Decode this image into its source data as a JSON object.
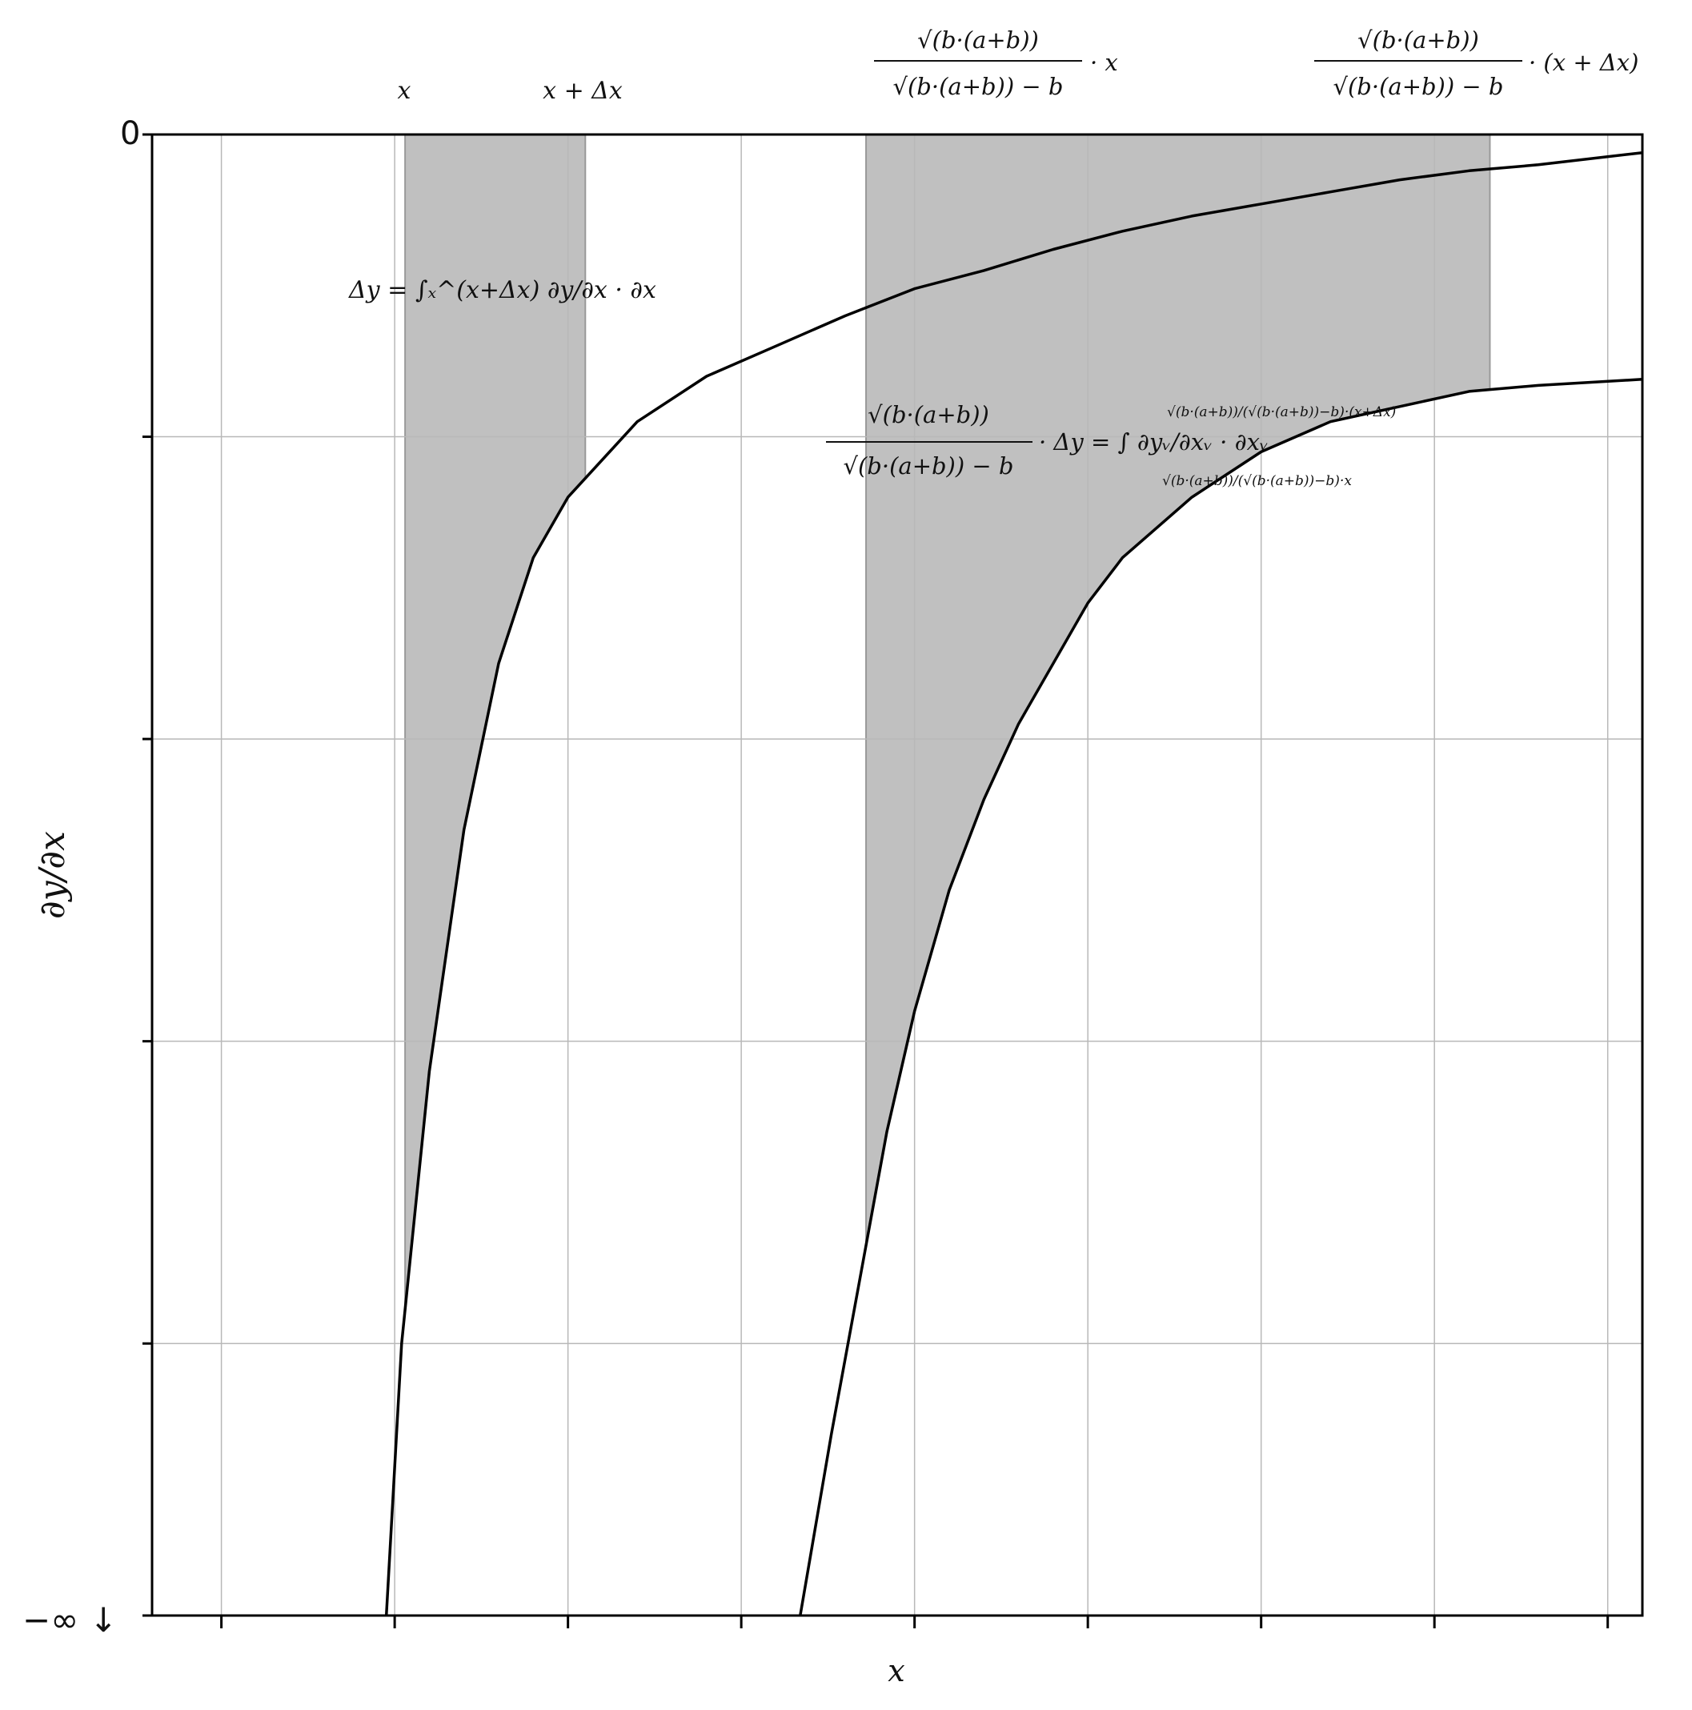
{
  "chart_data": {
    "type": "line",
    "title": "",
    "xlabel": "x",
    "ylabel": "∂y/∂x",
    "xlim": [
      0,
      21.5
    ],
    "ylim": [
      -4.9,
      0
    ],
    "x_major_ticks": [
      1,
      3.5,
      6,
      8.5,
      11,
      13.5,
      16,
      18.5,
      21
    ],
    "y_major_ticks": [
      -4,
      -3,
      -2,
      -1
    ],
    "y_tick_labels": {
      "top": "0",
      "bottom": "−∞ ↓"
    },
    "grid": true,
    "legend": "none",
    "series": [
      {
        "curve": "upper",
        "points": [
          [
            3.38,
            -4.9
          ],
          [
            3.6,
            -4.0
          ],
          [
            4.0,
            -3.1
          ],
          [
            4.5,
            -2.3
          ],
          [
            5.0,
            -1.75
          ],
          [
            5.5,
            -1.4
          ],
          [
            6.0,
            -1.2
          ],
          [
            7.0,
            -0.95
          ],
          [
            8.0,
            -0.8
          ],
          [
            9.0,
            -0.7
          ],
          [
            10.0,
            -0.6
          ],
          [
            11.0,
            -0.51
          ],
          [
            12.0,
            -0.45
          ],
          [
            13.0,
            -0.38
          ],
          [
            14.0,
            -0.32
          ],
          [
            15.0,
            -0.27
          ],
          [
            16.0,
            -0.23
          ],
          [
            17.0,
            -0.19
          ],
          [
            18.0,
            -0.15
          ],
          [
            19.0,
            -0.12
          ],
          [
            20.0,
            -0.1
          ],
          [
            21.5,
            -0.06
          ]
        ]
      },
      {
        "curve": "lower",
        "points": [
          [
            9.35,
            -4.9
          ],
          [
            9.8,
            -4.3
          ],
          [
            10.2,
            -3.8
          ],
          [
            10.6,
            -3.3
          ],
          [
            11.0,
            -2.9
          ],
          [
            11.5,
            -2.5
          ],
          [
            12.0,
            -2.2
          ],
          [
            12.5,
            -1.95
          ],
          [
            13.0,
            -1.75
          ],
          [
            13.5,
            -1.55
          ],
          [
            14.0,
            -1.4
          ],
          [
            15.0,
            -1.2
          ],
          [
            16.0,
            -1.05
          ],
          [
            17.0,
            -0.95
          ],
          [
            18.0,
            -0.9
          ],
          [
            19.0,
            -0.85
          ],
          [
            20.0,
            -0.83
          ],
          [
            21.5,
            -0.81
          ]
        ]
      }
    ],
    "shaded_regions": [
      {
        "x0": 3.65,
        "x1": 6.25,
        "under": "upper"
      },
      {
        "x0": 10.3,
        "x1": 19.3,
        "under": "lower"
      }
    ]
  },
  "labels": {
    "x_top": "x",
    "x_dx_top": "x + Δx",
    "v_top_num": "√(b·(a+b))",
    "v_top_den": "√(b·(a+b)) − b",
    "v_top_factor_x": "· x",
    "v_top_factor_xdx": "· (x + Δx)",
    "delta_y_eq": "Δy = ∫ₓ^(x+Δx) ∂y/∂x · ∂x",
    "scaled_lhs_num": "√(b·(a+b))",
    "scaled_lhs_den": "√(b·(a+b)) − b",
    "scaled_rhs": "· Δy = ∫ ∂yᵥ/∂xᵥ · ∂xᵥ",
    "int_upper": "√(b·(a+b))/(√(b·(a+b))−b)·(x+Δx)",
    "int_lower": "√(b·(a+b))/(√(b·(a+b))−b)·x"
  },
  "colors": {
    "shade": "#c0c0c0",
    "shade_edge": "#999999",
    "grid": "#b8b8b8",
    "curve": "#000000"
  }
}
